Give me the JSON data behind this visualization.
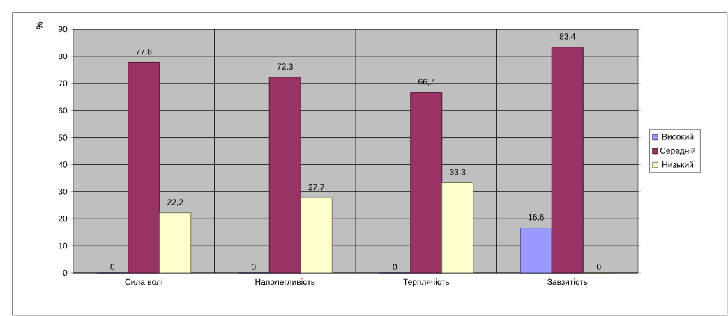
{
  "chart_data": {
    "type": "bar",
    "ylabel": "%",
    "categories": [
      "Сила волі",
      "Наполегливість",
      "Терплячість",
      "Завзятість"
    ],
    "series": [
      {
        "name": "Високий",
        "color": "#9999ff",
        "values": [
          0,
          0,
          0,
          16.6
        ],
        "value_labels": [
          "0",
          "0",
          "0",
          "16,6"
        ]
      },
      {
        "name": "Середній",
        "color": "#993366",
        "values": [
          77.8,
          72.3,
          66.7,
          83.4
        ],
        "value_labels": [
          "77,8",
          "72,3",
          "66,7",
          "83,4"
        ]
      },
      {
        "name": "Низький",
        "color": "#ffffcc",
        "values": [
          22.2,
          27.7,
          33.3,
          0
        ],
        "value_labels": [
          "22,2",
          "27,7",
          "33,3",
          "0"
        ]
      }
    ],
    "ylim": [
      0,
      90
    ],
    "yticks": [
      0,
      10,
      20,
      30,
      40,
      50,
      60,
      70,
      80,
      90
    ],
    "grid": true,
    "legend": "right"
  }
}
